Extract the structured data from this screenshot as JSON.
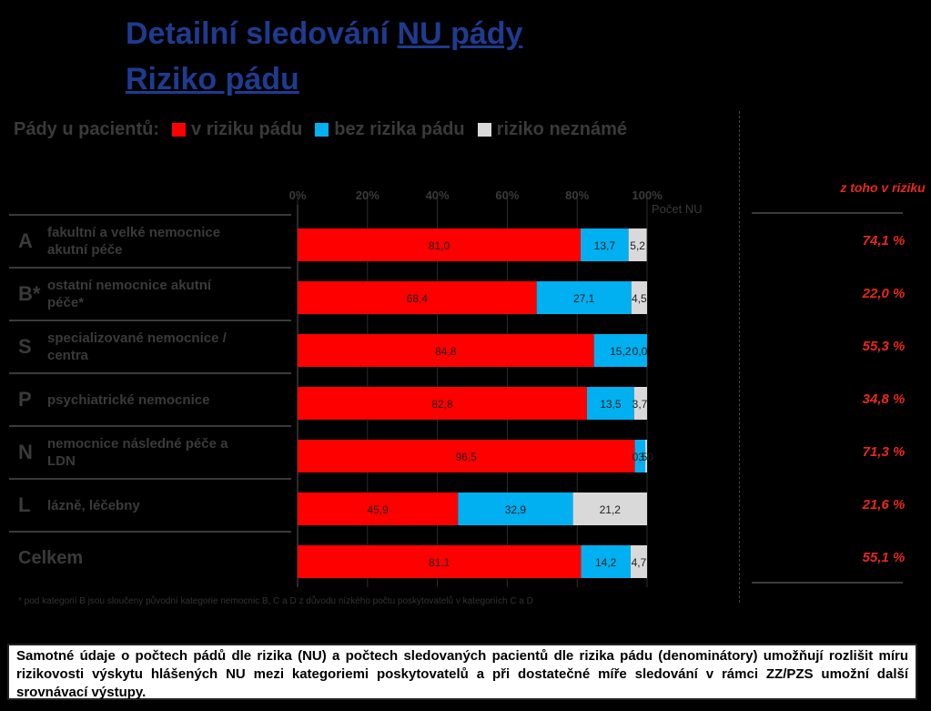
{
  "title": {
    "line1_prefix": "Detailní sledování ",
    "line1_underlined": "NU pády",
    "line2": "Riziko pádu"
  },
  "legend": {
    "label": "Pády u pacientů:",
    "items": [
      {
        "label": "v riziku pádu",
        "color": "#ff0000"
      },
      {
        "label": "bez rizika pádu",
        "color": "#00b0f0"
      },
      {
        "label": "riziko neznámé",
        "color": "#d9d9d9"
      }
    ]
  },
  "axis": {
    "ticks": [
      "0%",
      "20%",
      "40%",
      "60%",
      "80%",
      "100%"
    ],
    "count_label": "Počet NU"
  },
  "risk_header": "z toho v riziku",
  "rows": [
    {
      "letter": "A",
      "label": "fakultní a velké nemocnice akutní péče",
      "pct": "74,1 %"
    },
    {
      "letter": "B*",
      "label": "ostatní nemocnice akutní péče*",
      "pct": "22,0 %"
    },
    {
      "letter": "S",
      "label": "specializované nemocnice / centra",
      "pct": "55,3 %"
    },
    {
      "letter": "P",
      "label": "psychiatrické nemocnice",
      "pct": "34,8 %"
    },
    {
      "letter": "N",
      "label": "nemocnice následné péče a LDN",
      "pct": "71,3 %"
    },
    {
      "letter": "L",
      "label": "lázně, léčebny",
      "pct": "21,6 %"
    },
    {
      "letter": "",
      "label": "Celkem",
      "pct": "55,1 %"
    }
  ],
  "chart_data": {
    "type": "bar",
    "orientation": "horizontal",
    "stacked": "percent",
    "categories": [
      "A",
      "B*",
      "S",
      "P",
      "N",
      "L",
      "Celkem"
    ],
    "series": [
      {
        "name": "v riziku pádu",
        "color": "#ff0000",
        "values": [
          81.0,
          68.4,
          84.8,
          82.8,
          96.5,
          45.9,
          81.1
        ],
        "labels": [
          "81,0",
          "68,4",
          "84,8",
          "82,8",
          "96,5",
          "45,9",
          "81,1"
        ]
      },
      {
        "name": "bez rizika pádu",
        "color": "#00b0f0",
        "values": [
          13.7,
          27.1,
          15.2,
          13.5,
          3.0,
          32.9,
          14.2
        ],
        "labels": [
          "13,7",
          "27,1",
          "15,2",
          "13,5",
          "3,0",
          "32,9",
          "14,2"
        ]
      },
      {
        "name": "riziko neznámé",
        "color": "#d9d9d9",
        "values": [
          5.2,
          4.5,
          0.0,
          3.7,
          0.5,
          21.2,
          4.7
        ],
        "labels": [
          "5,2",
          "4,5",
          "0,0",
          "3,7",
          "0,5",
          "21,2",
          "4,7"
        ]
      }
    ],
    "xlim": [
      0,
      100
    ],
    "grid": true
  },
  "footnote": "* pod kategorií B jsou sloučeny původní kategorie nemocnic B, C a D z důvodu nízkého počtu poskytovatelů v kategoriích C a D",
  "note": "Samotné údaje o počtech pádů dle rizika (NU) a počtech sledovaných pacientů dle rizika pádu (denominátory) umožňují rozlišit míru rizikovosti výskytu hlášených NU mezi kategoriemi poskytovatelů a při dostatečné míře sledování v rámci ZZ/PZS umožní další srovnávací výstupy."
}
